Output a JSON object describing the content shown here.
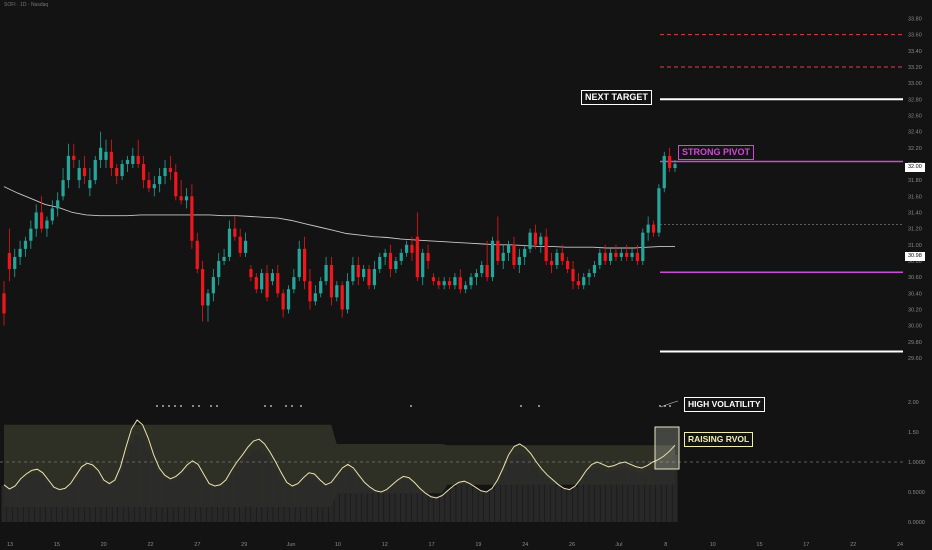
{
  "header": {
    "symbol": "SOFI · 1D · Nasdaq"
  },
  "colors": {
    "background": "#131313",
    "bull": "#26a69a",
    "bear": "#f0161b",
    "white_level": "#ffffff",
    "red_level": "#e04040",
    "magenta_level": "#d048d8",
    "ma_line": "#c8c8c8",
    "rvol_line": "#ebe2b0",
    "band_fill": "#3a3c2e"
  },
  "tags": {
    "next_target": "NEXT TARGET",
    "strong_pivot": "STRONG PIVOT",
    "high_volatility": "HIGH VOLATILITY",
    "raising_rvol": "RAISING RVOL"
  },
  "price_labels": {
    "last": "32.00",
    "ma": "30.98"
  },
  "chart_data": [
    {
      "type": "candlestick",
      "title": "",
      "price_axis_ticks": [
        "33.80",
        "33.60",
        "33.40",
        "33.20",
        "33.00",
        "32.80",
        "32.60",
        "32.40",
        "32.20",
        "32.00",
        "31.80",
        "31.60",
        "31.40",
        "31.20",
        "31.00",
        "30.80",
        "30.60",
        "30.40",
        "30.20",
        "30.00",
        "29.80",
        "29.60"
      ],
      "time_axis_ticks": [
        "13",
        "15",
        "20",
        "22",
        "27",
        "29",
        "Jun",
        "10",
        "12",
        "17",
        "19",
        "24",
        "26",
        "Jul",
        "8",
        "10",
        "15",
        "17",
        "22",
        "24"
      ],
      "ylim": [
        29.55,
        33.88
      ],
      "levels": [
        {
          "kind": "red-dashed",
          "price": 33.6
        },
        {
          "kind": "red-dashed",
          "price": 33.2
        },
        {
          "kind": "white",
          "price": 32.8,
          "label": "NEXT TARGET"
        },
        {
          "kind": "magenta",
          "price": 32.03,
          "label": "STRONG PIVOT"
        },
        {
          "kind": "gray-dotted",
          "price": 31.25
        },
        {
          "kind": "magenta",
          "price": 30.66
        },
        {
          "kind": "white",
          "price": 29.68
        }
      ],
      "last_price": 32.0,
      "ohlc": [
        [
          30.4,
          30.55,
          30.0,
          30.15
        ],
        [
          30.9,
          31.2,
          30.55,
          30.7
        ],
        [
          30.7,
          30.95,
          30.6,
          30.85
        ],
        [
          30.85,
          31.05,
          30.75,
          30.95
        ],
        [
          30.95,
          31.1,
          30.85,
          31.05
        ],
        [
          31.05,
          31.3,
          30.95,
          31.2
        ],
        [
          31.2,
          31.5,
          31.1,
          31.4
        ],
        [
          31.4,
          31.6,
          31.15,
          31.2
        ],
        [
          31.2,
          31.35,
          31.1,
          31.3
        ],
        [
          31.3,
          31.55,
          31.25,
          31.45
        ],
        [
          31.45,
          31.65,
          31.35,
          31.55
        ],
        [
          31.6,
          31.95,
          31.55,
          31.8
        ],
        [
          31.8,
          32.25,
          31.7,
          32.1
        ],
        [
          32.1,
          32.25,
          31.95,
          32.05
        ],
        [
          31.8,
          32.05,
          31.7,
          31.95
        ],
        [
          31.95,
          32.1,
          31.75,
          31.85
        ],
        [
          31.7,
          31.95,
          31.6,
          31.8
        ],
        [
          31.8,
          32.1,
          31.75,
          32.05
        ],
        [
          32.05,
          32.4,
          31.95,
          32.2
        ],
        [
          32.05,
          32.3,
          31.95,
          32.15
        ],
        [
          32.15,
          32.3,
          31.85,
          31.95
        ],
        [
          31.95,
          32.0,
          31.75,
          31.85
        ],
        [
          31.85,
          32.05,
          31.8,
          32.0
        ],
        [
          32.0,
          32.1,
          31.9,
          32.05
        ],
        [
          32.0,
          32.2,
          31.95,
          32.1
        ],
        [
          32.1,
          32.3,
          31.95,
          32.0
        ],
        [
          32.0,
          32.1,
          31.7,
          31.8
        ],
        [
          31.8,
          31.9,
          31.65,
          31.7
        ],
        [
          31.7,
          31.85,
          31.6,
          31.75
        ],
        [
          31.75,
          31.95,
          31.65,
          31.85
        ],
        [
          31.85,
          32.05,
          31.75,
          31.95
        ],
        [
          31.95,
          32.1,
          31.8,
          31.9
        ],
        [
          31.9,
          32.0,
          31.55,
          31.6
        ],
        [
          31.6,
          31.8,
          31.5,
          31.55
        ],
        [
          31.55,
          31.7,
          31.45,
          31.6
        ],
        [
          31.6,
          31.75,
          30.95,
          31.05
        ],
        [
          31.05,
          31.15,
          30.65,
          30.7
        ],
        [
          30.7,
          30.8,
          30.05,
          30.25
        ],
        [
          30.25,
          30.45,
          30.05,
          30.4
        ],
        [
          30.4,
          30.7,
          30.3,
          30.6
        ],
        [
          30.6,
          30.9,
          30.5,
          30.8
        ],
        [
          30.8,
          30.95,
          30.75,
          30.85
        ],
        [
          30.85,
          31.3,
          30.8,
          31.2
        ],
        [
          31.2,
          31.35,
          31.05,
          31.1
        ],
        [
          31.1,
          31.2,
          30.85,
          30.9
        ],
        [
          30.9,
          31.15,
          30.85,
          31.05
        ],
        [
          30.7,
          30.75,
          30.55,
          30.6
        ],
        [
          30.6,
          30.65,
          30.4,
          30.45
        ],
        [
          30.45,
          30.7,
          30.4,
          30.65
        ],
        [
          30.65,
          30.75,
          30.3,
          30.35
        ],
        [
          30.55,
          30.7,
          30.5,
          30.65
        ],
        [
          30.65,
          30.75,
          30.35,
          30.4
        ],
        [
          30.4,
          30.45,
          30.1,
          30.2
        ],
        [
          30.2,
          30.5,
          30.15,
          30.45
        ],
        [
          30.45,
          30.7,
          30.4,
          30.6
        ],
        [
          30.6,
          31.05,
          30.55,
          30.95
        ],
        [
          30.95,
          31.1,
          30.45,
          30.55
        ],
        [
          30.55,
          30.7,
          30.2,
          30.3
        ],
        [
          30.3,
          30.5,
          30.25,
          30.4
        ],
        [
          30.4,
          30.6,
          30.35,
          30.55
        ],
        [
          30.55,
          30.85,
          30.5,
          30.75
        ],
        [
          30.75,
          30.85,
          30.25,
          30.35
        ],
        [
          30.35,
          30.55,
          30.3,
          30.5
        ],
        [
          30.5,
          30.55,
          30.1,
          30.2
        ],
        [
          30.2,
          30.65,
          30.15,
          30.55
        ],
        [
          30.55,
          30.85,
          30.5,
          30.75
        ],
        [
          30.75,
          30.85,
          30.5,
          30.6
        ],
        [
          30.6,
          30.75,
          30.55,
          30.7
        ],
        [
          30.7,
          30.75,
          30.45,
          30.5
        ],
        [
          30.5,
          30.8,
          30.45,
          30.7
        ],
        [
          30.7,
          30.9,
          30.65,
          30.85
        ],
        [
          30.85,
          30.95,
          30.75,
          30.9
        ],
        [
          30.9,
          31.0,
          30.6,
          30.7
        ],
        [
          30.7,
          30.85,
          30.65,
          30.8
        ],
        [
          30.8,
          30.95,
          30.75,
          30.9
        ],
        [
          30.9,
          31.05,
          30.85,
          31.0
        ],
        [
          31.0,
          31.1,
          30.8,
          30.9
        ],
        [
          31.1,
          31.4,
          30.55,
          30.6
        ],
        [
          30.6,
          30.95,
          30.5,
          30.9
        ],
        [
          30.9,
          31.0,
          30.7,
          30.8
        ],
        [
          30.6,
          30.65,
          30.5,
          30.55
        ],
        [
          30.55,
          30.6,
          30.45,
          30.5
        ],
        [
          30.5,
          30.6,
          30.45,
          30.55
        ],
        [
          30.55,
          30.6,
          30.45,
          30.5
        ],
        [
          30.5,
          30.65,
          30.45,
          30.6
        ],
        [
          30.6,
          30.7,
          30.4,
          30.45
        ],
        [
          30.45,
          30.55,
          30.4,
          30.5
        ],
        [
          30.5,
          30.65,
          30.45,
          30.6
        ],
        [
          30.6,
          30.7,
          30.5,
          30.65
        ],
        [
          30.65,
          30.8,
          30.6,
          30.75
        ],
        [
          30.75,
          31.05,
          30.55,
          30.6
        ],
        [
          30.6,
          31.1,
          30.55,
          31.05
        ],
        [
          31.05,
          31.35,
          30.75,
          30.8
        ],
        [
          30.8,
          31.0,
          30.7,
          30.9
        ],
        [
          30.9,
          31.05,
          30.8,
          31.0
        ],
        [
          31.0,
          31.1,
          30.7,
          30.75
        ],
        [
          30.75,
          30.95,
          30.65,
          30.85
        ],
        [
          30.85,
          31.0,
          30.75,
          30.95
        ],
        [
          30.95,
          31.2,
          30.9,
          31.15
        ],
        [
          31.15,
          31.25,
          30.95,
          31.0
        ],
        [
          31.0,
          31.15,
          30.9,
          31.1
        ],
        [
          31.1,
          31.2,
          30.75,
          30.8
        ],
        [
          30.8,
          30.9,
          30.65,
          30.75
        ],
        [
          30.75,
          30.95,
          30.7,
          30.9
        ],
        [
          30.9,
          31.0,
          30.75,
          30.8
        ],
        [
          30.8,
          30.85,
          30.65,
          30.7
        ],
        [
          30.7,
          30.8,
          30.45,
          30.55
        ],
        [
          30.55,
          30.65,
          30.45,
          30.5
        ],
        [
          30.5,
          30.65,
          30.45,
          30.6
        ],
        [
          30.6,
          30.7,
          30.5,
          30.65
        ],
        [
          30.65,
          30.8,
          30.6,
          30.75
        ],
        [
          30.75,
          30.95,
          30.7,
          30.9
        ],
        [
          30.9,
          31.0,
          30.75,
          30.8
        ],
        [
          30.8,
          30.95,
          30.75,
          30.9
        ],
        [
          30.9,
          31.0,
          30.8,
          30.85
        ],
        [
          30.85,
          30.95,
          30.8,
          30.9
        ],
        [
          30.9,
          31.0,
          30.8,
          30.85
        ],
        [
          30.85,
          30.95,
          30.8,
          30.9
        ],
        [
          30.9,
          31.0,
          30.75,
          30.8
        ],
        [
          30.8,
          31.2,
          30.75,
          31.15
        ],
        [
          31.15,
          31.35,
          31.05,
          31.25
        ],
        [
          31.25,
          31.3,
          31.1,
          31.15
        ],
        [
          31.15,
          31.75,
          31.1,
          31.7
        ],
        [
          31.7,
          32.15,
          31.65,
          32.1
        ],
        [
          32.1,
          32.2,
          31.9,
          31.95
        ],
        [
          31.95,
          32.05,
          31.9,
          32.0
        ]
      ],
      "ma_line": [
        31.72,
        31.64,
        31.57,
        31.5,
        31.46,
        31.4,
        31.37,
        31.36,
        31.36,
        31.36,
        31.37,
        31.37,
        31.37,
        31.37,
        31.37,
        31.37,
        31.36,
        31.36,
        31.35,
        31.34,
        31.33,
        31.3,
        31.26,
        31.22,
        31.18,
        31.14,
        31.12,
        31.1,
        31.09,
        31.07,
        31.06,
        31.05,
        31.04,
        31.03,
        31.02,
        31.01,
        31.0,
        31.0,
        30.99,
        30.98,
        30.98,
        30.97,
        30.97,
        30.97,
        30.96,
        30.96,
        30.96,
        30.97,
        30.98,
        30.98
      ]
    },
    {
      "type": "area",
      "title": "",
      "rvol_axis_ticks": [
        "2.00",
        "1.50",
        "1.0000",
        "0.5000",
        "0.0000"
      ],
      "ylim": [
        0,
        2.2
      ],
      "series": [
        {
          "values": [
            0.62,
            0.55,
            0.6,
            0.72,
            0.8,
            0.86,
            0.88,
            0.82,
            0.7,
            0.58,
            0.54,
            0.56,
            0.64,
            0.78,
            0.92,
            0.98,
            0.95,
            0.86,
            0.7,
            0.64,
            0.7,
            0.92,
            1.25,
            1.55,
            1.7,
            1.62,
            1.4,
            1.12,
            0.9,
            0.78,
            0.72,
            0.76,
            0.84,
            0.95,
            1.02,
            0.96,
            0.8,
            0.64,
            0.6,
            0.62,
            0.7,
            0.86,
            1.0,
            1.12,
            1.25,
            1.35,
            1.38,
            1.3,
            1.16,
            1.0,
            0.82,
            0.66,
            0.6,
            0.64,
            0.74,
            0.82,
            0.8,
            0.7,
            0.62,
            0.66,
            0.78,
            0.9,
            0.96,
            0.9,
            0.78,
            0.66,
            0.58,
            0.52,
            0.5,
            0.54,
            0.62,
            0.7,
            0.76,
            0.74,
            0.66,
            0.56,
            0.48,
            0.42,
            0.4,
            0.44,
            0.52,
            0.6,
            0.66,
            0.68,
            0.64,
            0.58,
            0.52,
            0.5,
            0.56,
            0.7,
            0.9,
            1.12,
            1.26,
            1.3,
            1.24,
            1.14,
            1.0,
            0.88,
            0.78,
            0.7,
            0.62,
            0.56,
            0.54,
            0.6,
            0.72,
            0.86,
            0.96,
            1.0,
            0.96,
            0.92,
            0.94,
            0.98,
            1.0,
            0.96,
            0.92,
            0.9,
            0.94,
            1.0,
            1.04,
            1.1,
            1.18,
            1.28
          ]
        }
      ]
    }
  ]
}
